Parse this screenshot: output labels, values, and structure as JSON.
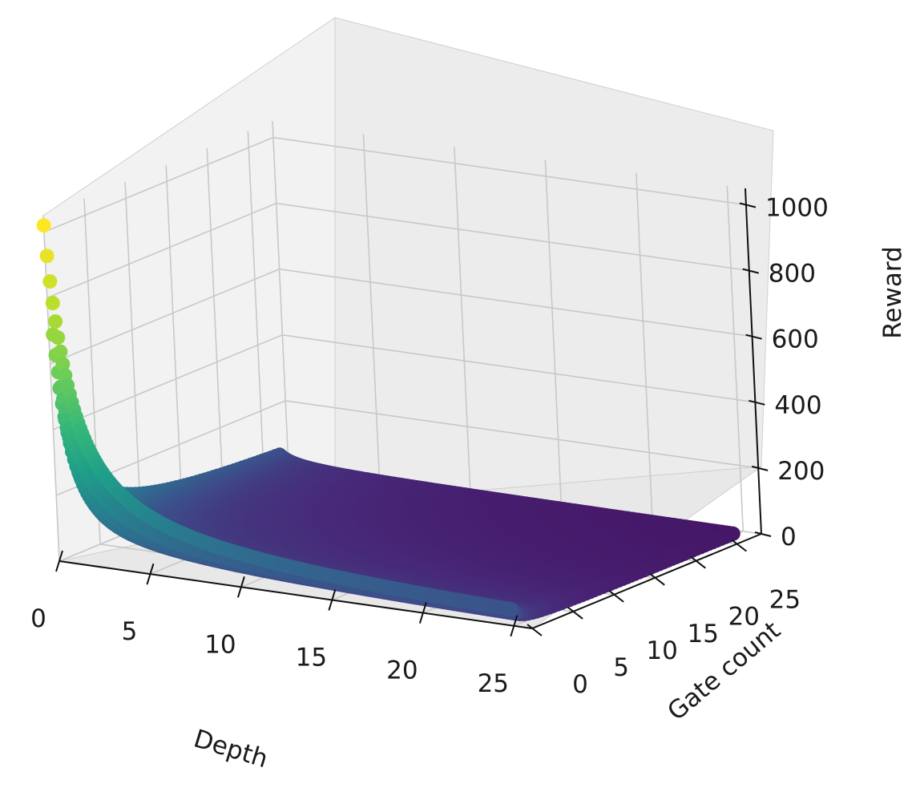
{
  "chart_data": {
    "type": "scatter",
    "plot_kind": "3d-scatter-surface",
    "xlabel": "Depth",
    "ylabel": "Gate count",
    "zlabel": "Reward",
    "x_ticks": [
      "0",
      "5",
      "10",
      "15",
      "20",
      "25"
    ],
    "y_ticks": [
      "0",
      "5",
      "10",
      "15",
      "20",
      "25"
    ],
    "z_ticks": [
      "0",
      "200",
      "400",
      "600",
      "800",
      "1000"
    ],
    "xlim": [
      0,
      26
    ],
    "ylim": [
      0,
      28
    ],
    "zlim": [
      0,
      1050
    ],
    "grid": true,
    "colormap": "viridis",
    "function": "reward = 1000 / ((depth + 1) * (gate_count + 1)) + 10 / (depth + 1) + 10 / (gate_count + 1) (approximate)",
    "grid_points": {
      "depth": [
        0,
        1,
        2,
        3,
        4,
        5,
        6,
        7,
        8,
        9,
        10,
        11,
        12,
        13,
        14,
        15,
        16,
        17,
        18,
        19,
        20,
        21,
        22,
        23,
        24,
        25
      ],
      "gate_count": [
        0,
        1,
        2,
        3,
        4,
        5,
        6,
        7,
        8,
        9,
        10,
        11,
        12,
        13,
        14,
        15,
        16,
        17,
        18,
        19,
        20,
        21,
        22,
        23,
        24,
        25,
        26,
        27
      ]
    },
    "peak": {
      "depth": 0,
      "gate_count": 0,
      "reward": 1000
    }
  }
}
